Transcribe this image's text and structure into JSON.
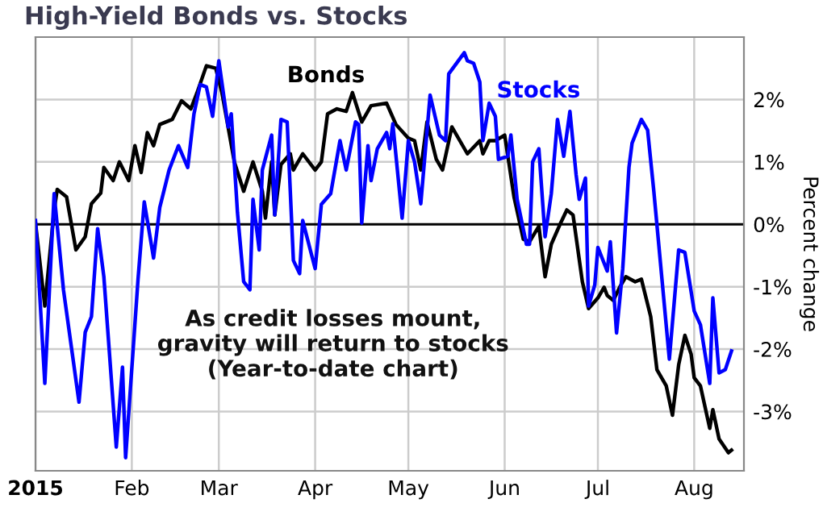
{
  "chart_data": {
    "type": "line",
    "title": "High-Yield Bonds vs. Stocks",
    "ylabel": "Percent change",
    "annotations": [
      "As credit losses mount,\ngravity will return to stocks\n(Year-to-date chart)"
    ],
    "xlim": [
      "2015-01-01",
      "2015-08-17"
    ],
    "xticks": [
      {
        "value": "2015-01-01",
        "label": "2015"
      },
      {
        "value": "2015-02-01",
        "label": "Feb"
      },
      {
        "value": "2015-03-01",
        "label": "Mar"
      },
      {
        "value": "2015-04-01",
        "label": "Apr"
      },
      {
        "value": "2015-05-01",
        "label": "May"
      },
      {
        "value": "2015-06-01",
        "label": "Jun"
      },
      {
        "value": "2015-07-01",
        "label": "Jul"
      },
      {
        "value": "2015-08-01",
        "label": "Aug"
      }
    ],
    "ylim": [
      -3.95,
      3.0
    ],
    "yticks": [
      {
        "value": -3,
        "label": "-3%"
      },
      {
        "value": -2,
        "label": "-2%"
      },
      {
        "value": -1,
        "label": "-1%"
      },
      {
        "value": 0,
        "label": "0%"
      },
      {
        "value": 1,
        "label": "1%"
      },
      {
        "value": 2,
        "label": "2%"
      }
    ],
    "grid": true,
    "legend": false,
    "marker": "none",
    "line_style": "solid",
    "ref_lines": [
      {
        "axis": "y",
        "value": 0,
        "color": "#000000"
      }
    ],
    "series": [
      {
        "name": "Bonds",
        "color": "#000000",
        "x": [
          "2015-01-01",
          "2015-01-04",
          "2015-01-07",
          "2015-01-08",
          "2015-01-11",
          "2015-01-14",
          "2015-01-17",
          "2015-01-19",
          "2015-01-22",
          "2015-01-23",
          "2015-01-26",
          "2015-01-28",
          "2015-01-31",
          "2015-02-02",
          "2015-02-04",
          "2015-02-06",
          "2015-02-08",
          "2015-02-10",
          "2015-02-14",
          "2015-02-17",
          "2015-02-20",
          "2015-02-22",
          "2015-02-25",
          "2015-02-28",
          "2015-03-02",
          "2015-03-06",
          "2015-03-09",
          "2015-03-12",
          "2015-03-15",
          "2015-03-16",
          "2015-03-18",
          "2015-03-19",
          "2015-03-21",
          "2015-03-24",
          "2015-03-25",
          "2015-03-28",
          "2015-04-01",
          "2015-04-03",
          "2015-04-05",
          "2015-04-08",
          "2015-04-11",
          "2015-04-13",
          "2015-04-16",
          "2015-04-19",
          "2015-04-24",
          "2015-04-27",
          "2015-05-01",
          "2015-05-03",
          "2015-05-05",
          "2015-05-07",
          "2015-05-10",
          "2015-05-12",
          "2015-05-15",
          "2015-05-20",
          "2015-05-24",
          "2015-05-25",
          "2015-05-27",
          "2015-05-29",
          "2015-06-01",
          "2015-06-04",
          "2015-06-07",
          "2015-06-09",
          "2015-06-12",
          "2015-06-14",
          "2015-06-16",
          "2015-06-19",
          "2015-06-21",
          "2015-06-23",
          "2015-06-26",
          "2015-06-28",
          "2015-07-01",
          "2015-07-03",
          "2015-07-04",
          "2015-07-06",
          "2015-07-08",
          "2015-07-10",
          "2015-07-13",
          "2015-07-15",
          "2015-07-18",
          "2015-07-20",
          "2015-07-23",
          "2015-07-25",
          "2015-07-27",
          "2015-07-29",
          "2015-07-31",
          "2015-08-01",
          "2015-08-03",
          "2015-08-06",
          "2015-08-07",
          "2015-08-09",
          "2015-08-12",
          "2015-08-13"
        ],
        "values": [
          0.02,
          -1.31,
          0.23,
          0.56,
          0.44,
          -0.41,
          -0.2,
          0.33,
          0.5,
          0.91,
          0.7,
          1.0,
          0.7,
          1.26,
          0.83,
          1.47,
          1.26,
          1.6,
          1.68,
          1.98,
          1.85,
          2.11,
          2.54,
          2.5,
          2.11,
          1.0,
          0.53,
          1.0,
          0.53,
          0.1,
          1.0,
          0.15,
          0.96,
          1.13,
          0.87,
          1.13,
          0.87,
          1.0,
          1.77,
          1.85,
          1.81,
          2.11,
          1.64,
          1.9,
          1.94,
          1.6,
          1.38,
          1.34,
          0.87,
          1.64,
          1.04,
          0.87,
          1.56,
          1.13,
          1.34,
          1.13,
          1.34,
          1.34,
          1.43,
          0.44,
          -0.24,
          -0.28,
          -0.03,
          -0.84,
          -0.32,
          0.02,
          0.23,
          0.15,
          -0.92,
          -1.35,
          -1.18,
          -1.01,
          -1.14,
          -1.22,
          -1.01,
          -0.84,
          -0.92,
          -0.88,
          -1.48,
          -2.33,
          -2.59,
          -3.06,
          -2.25,
          -1.78,
          -2.08,
          -2.46,
          -2.59,
          -3.27,
          -2.97,
          -3.44,
          -3.66,
          -3.62
        ]
      },
      {
        "name": "Stocks",
        "color": "#0000ff",
        "x": [
          "2015-01-01",
          "2015-01-04",
          "2015-01-07",
          "2015-01-10",
          "2015-01-15",
          "2015-01-17",
          "2015-01-19",
          "2015-01-21",
          "2015-01-23",
          "2015-01-27",
          "2015-01-29",
          "2015-01-30",
          "2015-02-03",
          "2015-02-05",
          "2015-02-08",
          "2015-02-10",
          "2015-02-13",
          "2015-02-16",
          "2015-02-19",
          "2015-02-21",
          "2015-02-23",
          "2015-02-25",
          "2015-02-27",
          "2015-03-01",
          "2015-03-04",
          "2015-03-05",
          "2015-03-07",
          "2015-03-09",
          "2015-03-11",
          "2015-03-12",
          "2015-03-14",
          "2015-03-15",
          "2015-03-18",
          "2015-03-19",
          "2015-03-21",
          "2015-03-23",
          "2015-03-25",
          "2015-03-27",
          "2015-03-28",
          "2015-04-01",
          "2015-04-03",
          "2015-04-06",
          "2015-04-09",
          "2015-04-11",
          "2015-04-14",
          "2015-04-15",
          "2015-04-16",
          "2015-04-18",
          "2015-04-19",
          "2015-04-21",
          "2015-04-24",
          "2015-04-25",
          "2015-04-26",
          "2015-04-29",
          "2015-05-01",
          "2015-05-03",
          "2015-05-05",
          "2015-05-08",
          "2015-05-11",
          "2015-05-13",
          "2015-05-14",
          "2015-05-19",
          "2015-05-20",
          "2015-05-22",
          "2015-05-24",
          "2015-05-25",
          "2015-05-27",
          "2015-05-29",
          "2015-05-30",
          "2015-06-02",
          "2015-06-03",
          "2015-06-05",
          "2015-06-08",
          "2015-06-09",
          "2015-06-10",
          "2015-06-12",
          "2015-06-14",
          "2015-06-16",
          "2015-06-18",
          "2015-06-20",
          "2015-06-22",
          "2015-06-24",
          "2015-06-25",
          "2015-06-27",
          "2015-06-28",
          "2015-06-30",
          "2015-07-01",
          "2015-07-04",
          "2015-07-05",
          "2015-07-07",
          "2015-07-09",
          "2015-07-11",
          "2015-07-12",
          "2015-07-15",
          "2015-07-17",
          "2015-07-19",
          "2015-07-24",
          "2015-07-27",
          "2015-07-29",
          "2015-08-01",
          "2015-08-03",
          "2015-08-06",
          "2015-08-07",
          "2015-08-09",
          "2015-08-11",
          "2015-08-13"
        ],
        "values": [
          0.06,
          -2.55,
          0.49,
          -1.05,
          -2.85,
          -1.73,
          -1.48,
          -0.07,
          -0.84,
          -3.57,
          -2.29,
          -3.74,
          -0.88,
          0.36,
          -0.54,
          0.27,
          0.87,
          1.26,
          0.91,
          1.77,
          2.24,
          2.2,
          1.73,
          2.62,
          1.56,
          1.77,
          0.19,
          -0.92,
          -1.05,
          0.4,
          -0.41,
          0.87,
          1.43,
          0.15,
          1.68,
          1.64,
          -0.58,
          -0.79,
          0.06,
          -0.71,
          0.32,
          0.49,
          1.34,
          0.87,
          1.64,
          1.6,
          0.02,
          1.26,
          0.7,
          1.21,
          1.47,
          1.21,
          1.61,
          0.1,
          1.34,
          1.0,
          0.33,
          2.07,
          1.43,
          1.34,
          2.41,
          2.75,
          2.62,
          2.58,
          2.28,
          1.34,
          1.94,
          1.73,
          1.04,
          1.09,
          1.43,
          0.4,
          -0.32,
          -0.32,
          1.0,
          1.21,
          -0.2,
          0.49,
          1.68,
          1.09,
          1.81,
          0.79,
          0.4,
          0.74,
          -1.31,
          -0.97,
          -0.37,
          -0.75,
          -0.28,
          -1.74,
          -0.71,
          0.91,
          1.3,
          1.68,
          1.51,
          0.53,
          -2.16,
          -0.41,
          -0.45,
          -1.39,
          -1.61,
          -2.55,
          -1.18,
          -2.38,
          -2.33,
          -2.03
        ]
      }
    ]
  }
}
